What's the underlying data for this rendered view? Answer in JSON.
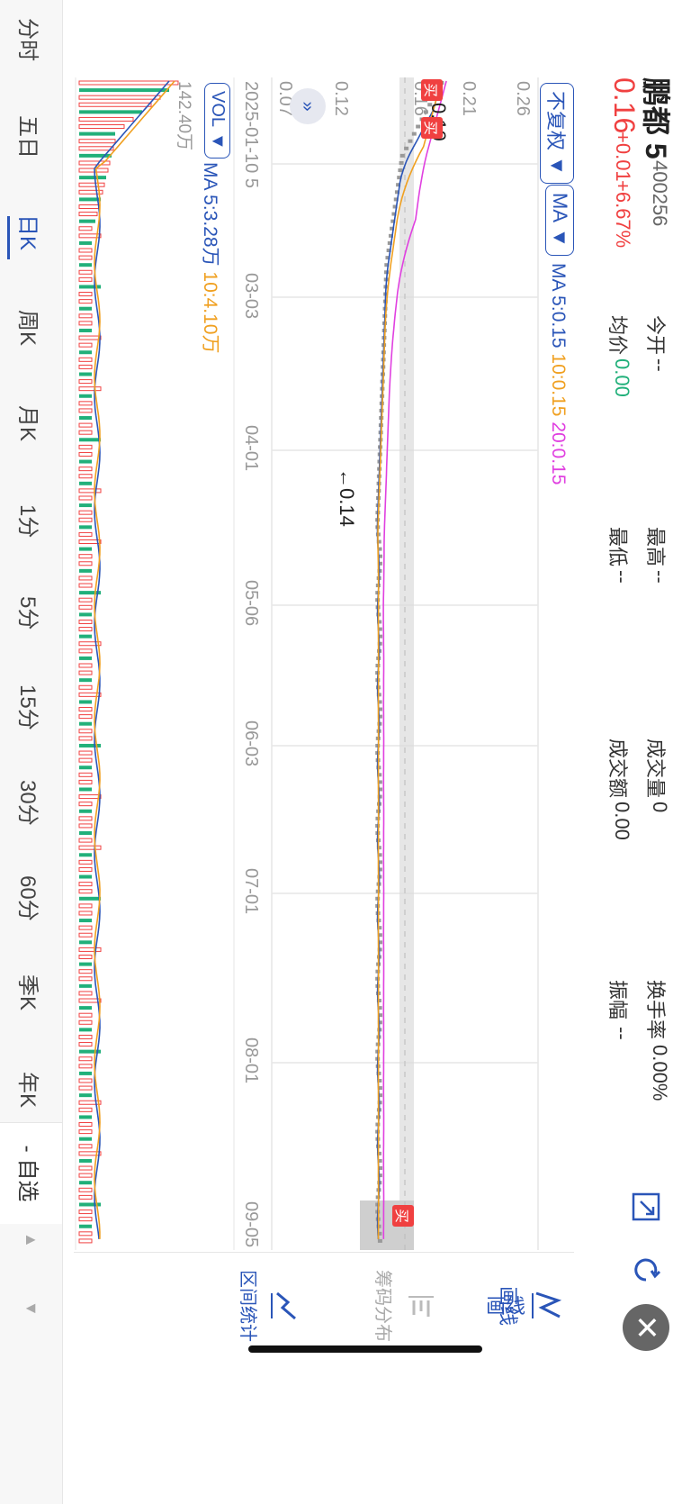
{
  "stock": {
    "name": "鹏都 5",
    "code": "400256",
    "price": "0.16",
    "change": "+0.01",
    "change_pct": "+6.67%"
  },
  "quote": {
    "open_label": "今开",
    "open_value": "--",
    "high_label": "最高",
    "high_value": "--",
    "volume_label": "成交量",
    "volume_value": "0",
    "turnover_rate_label": "换手率",
    "turnover_rate_value": "0.00%",
    "avg_label": "均价",
    "avg_value": "0.00",
    "low_label": "最低",
    "low_value": "--",
    "amount_label": "成交额",
    "amount_value": "0.00",
    "amplitude_label": "振幅",
    "amplitude_value": "--"
  },
  "toolbar": {
    "adjust_label": "不复权",
    "ma_label": "MA",
    "ma_legend": {
      "ma5": "MA 5:0.15",
      "ma10": "10:0.15",
      "ma20": "20:0.15"
    }
  },
  "price_axis": {
    "ticks": [
      "0.26",
      "0.21",
      "0.16",
      "0.12",
      "0.07"
    ]
  },
  "date_axis": {
    "ticks": [
      "2025-01-10",
      "03-03",
      "04-01",
      "05-06",
      "06-03",
      "07-01",
      "08-01",
      "09-05"
    ],
    "first_suffix": "5"
  },
  "annotations": {
    "high_arrow": "←0.19",
    "low_arrow": "←0.14",
    "buy_label": "买"
  },
  "volume": {
    "label": "VOL",
    "max_label": "142.40万",
    "ma5": "MA 5:3.28万",
    "ma10": "10:4.10万"
  },
  "timeframes": [
    "分时",
    "五日",
    "日K",
    "周K",
    "月K",
    "1分",
    "5分",
    "15分",
    "30分",
    "60分",
    "季K",
    "年K"
  ],
  "active_timeframe_index": 2,
  "watchlist_label": "- 自选",
  "sidebar": {
    "draw_label": "画线",
    "chips_label": "筹码分布",
    "range_label": "区间统计"
  },
  "colors": {
    "up": "#f04040",
    "down": "#21b07a",
    "ma5": "#2a55b8",
    "ma10": "#f0a020",
    "ma20": "#e040e0",
    "accent": "#2a55b8"
  },
  "icons": {
    "expand": "expand-icon",
    "refresh": "refresh-icon",
    "close": "close-icon",
    "collapse": "collapse-chevron-icon"
  }
}
